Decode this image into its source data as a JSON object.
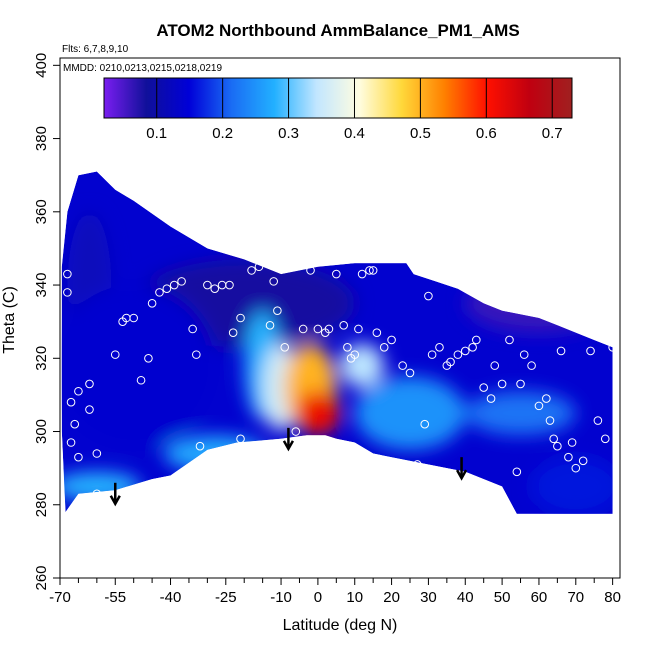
{
  "chart_data": {
    "type": "heatmap",
    "title": "ATOM2 Northbound AmmBalance_PM1_AMS",
    "annotations": [
      "Flts: 6,7,8,9,10",
      "MMDD: 0210,0213,0215,0218,0219"
    ],
    "xlabel": "Latitude (deg N)",
    "ylabel": "Theta (C)",
    "xlim": [
      -70,
      82
    ],
    "ylim": [
      260,
      402
    ],
    "x_ticks": [
      -70,
      -55,
      -40,
      -25,
      -10,
      0,
      10,
      20,
      30,
      40,
      50,
      60,
      70,
      80
    ],
    "x_tick_labels": [
      "-70",
      "-55",
      "-40",
      "-25",
      "-10",
      "0",
      "10",
      "20",
      "30",
      "40",
      "50",
      "60",
      "70",
      "80"
    ],
    "x_minor_ticks": [
      -65,
      -60,
      -50,
      -45,
      -35,
      -30,
      -20,
      -15,
      -5,
      5,
      15,
      25,
      35,
      45,
      55,
      65,
      75
    ],
    "y_ticks": [
      260,
      280,
      300,
      320,
      340,
      360,
      380,
      400
    ],
    "y_tick_labels": [
      "260",
      "280",
      "300",
      "320",
      "340",
      "360",
      "380",
      "400"
    ],
    "colorbar": {
      "range": [
        0.02,
        0.73
      ],
      "ticks": [
        0.1,
        0.2,
        0.3,
        0.4,
        0.5,
        0.6,
        0.7
      ],
      "tick_labels": [
        "0.1",
        "0.2",
        "0.3",
        "0.4",
        "0.5",
        "0.6",
        "0.7"
      ],
      "colors": [
        "#7a1ef0",
        "#10109a",
        "#0000d8",
        "#1a6cf4",
        "#22b0ff",
        "#c2e6ff",
        "#fffde0",
        "#ffd83a",
        "#ff8000",
        "#ff1000",
        "#c00010",
        "#a02020"
      ]
    },
    "field_outline": [
      [
        -68.5,
        278
      ],
      [
        -65,
        283
      ],
      [
        -55,
        284
      ],
      [
        -45,
        287
      ],
      [
        -40,
        288
      ],
      [
        -30,
        295
      ],
      [
        -22,
        297
      ],
      [
        -10,
        298
      ],
      [
        -3,
        299
      ],
      [
        2,
        299
      ],
      [
        5,
        298
      ],
      [
        10,
        297
      ],
      [
        15,
        294
      ],
      [
        20,
        293
      ],
      [
        30,
        291
      ],
      [
        40,
        289
      ],
      [
        45,
        287
      ],
      [
        50,
        285
      ],
      [
        54,
        277.5
      ],
      [
        80,
        277.5
      ],
      [
        80,
        323
      ],
      [
        75,
        325
      ],
      [
        70,
        327
      ],
      [
        65,
        329
      ],
      [
        60,
        331
      ],
      [
        50,
        333
      ],
      [
        45,
        335
      ],
      [
        38,
        339
      ],
      [
        32,
        341
      ],
      [
        26,
        343
      ],
      [
        24,
        346
      ],
      [
        10,
        346
      ],
      [
        0,
        345
      ],
      [
        -10,
        343
      ],
      [
        -20,
        347
      ],
      [
        -30,
        350
      ],
      [
        -40,
        356
      ],
      [
        -50,
        363
      ],
      [
        -55,
        366
      ],
      [
        -60,
        371
      ],
      [
        -65,
        370
      ],
      [
        -68,
        360
      ],
      [
        -69.5,
        345
      ],
      [
        -69.5,
        300
      ]
    ],
    "field_blobs": [
      {
        "center": [
          -62,
          340
        ],
        "value": 0.12,
        "extent": [
          6,
          20
        ]
      },
      {
        "center": [
          -20,
          335
        ],
        "value": 0.08,
        "extent": [
          30,
          12
        ]
      },
      {
        "center": [
          -50,
          318
        ],
        "value": 0.14,
        "extent": [
          22,
          22
        ]
      },
      {
        "center": [
          -60,
          285
        ],
        "value": 0.28,
        "extent": [
          12,
          4
        ]
      },
      {
        "center": [
          -28,
          294
        ],
        "value": 0.27,
        "extent": [
          14,
          5
        ]
      },
      {
        "center": [
          -15,
          318
        ],
        "value": 0.28,
        "extent": [
          5,
          15
        ]
      },
      {
        "center": [
          -10,
          312
        ],
        "value": 0.36,
        "extent": [
          5,
          12
        ]
      },
      {
        "center": [
          12,
          318
        ],
        "value": 0.34,
        "extent": [
          6,
          6
        ]
      },
      {
        "center": [
          -2,
          312
        ],
        "value": 0.5,
        "extent": [
          7,
          12
        ]
      },
      {
        "center": [
          0,
          305
        ],
        "value": 0.62,
        "extent": [
          6,
          6
        ]
      },
      {
        "center": [
          25,
          305
        ],
        "value": 0.25,
        "extent": [
          15,
          10
        ]
      },
      {
        "center": [
          55,
          305
        ],
        "value": 0.22,
        "extent": [
          15,
          6
        ]
      },
      {
        "center": [
          60,
          335
        ],
        "value": 0.06,
        "extent": [
          20,
          8
        ]
      },
      {
        "center": [
          70,
          285
        ],
        "value": 0.16,
        "extent": [
          12,
          8
        ]
      }
    ],
    "sample_points": [
      [
        -68,
        343
      ],
      [
        -68,
        338
      ],
      [
        -67,
        297
      ],
      [
        -67,
        308
      ],
      [
        -66,
        302
      ],
      [
        -65,
        311
      ],
      [
        -65,
        293
      ],
      [
        -62,
        306
      ],
      [
        -62,
        313
      ],
      [
        -60,
        294
      ],
      [
        -60,
        283
      ],
      [
        -55,
        321
      ],
      [
        -53,
        330
      ],
      [
        -52,
        331
      ],
      [
        -50,
        331
      ],
      [
        -48,
        314
      ],
      [
        -46,
        320
      ],
      [
        -45,
        335
      ],
      [
        -43,
        338
      ],
      [
        -41,
        339
      ],
      [
        -39,
        340
      ],
      [
        -37,
        341
      ],
      [
        -34,
        328
      ],
      [
        -33,
        321
      ],
      [
        -32,
        296
      ],
      [
        -30,
        340
      ],
      [
        -28,
        339
      ],
      [
        -26,
        340
      ],
      [
        -24,
        340
      ],
      [
        -23,
        327
      ],
      [
        -21,
        298
      ],
      [
        -21,
        331
      ],
      [
        -18,
        344
      ],
      [
        -16,
        345
      ],
      [
        -15,
        347
      ],
      [
        -13,
        329
      ],
      [
        -12,
        341
      ],
      [
        -11,
        333
      ],
      [
        -9,
        323
      ],
      [
        -6,
        300
      ],
      [
        -4,
        328
      ],
      [
        -2,
        344
      ],
      [
        0,
        328
      ],
      [
        2,
        327
      ],
      [
        3,
        328
      ],
      [
        5,
        343
      ],
      [
        7,
        329
      ],
      [
        8,
        323
      ],
      [
        9,
        320
      ],
      [
        10,
        321
      ],
      [
        11,
        328
      ],
      [
        12,
        343
      ],
      [
        14,
        344
      ],
      [
        15,
        344
      ],
      [
        16,
        327
      ],
      [
        18,
        323
      ],
      [
        20,
        325
      ],
      [
        23,
        318
      ],
      [
        25,
        316
      ],
      [
        27,
        291
      ],
      [
        29,
        302
      ],
      [
        30,
        337
      ],
      [
        31,
        321
      ],
      [
        33,
        323
      ],
      [
        35,
        318
      ],
      [
        36,
        319
      ],
      [
        38,
        321
      ],
      [
        40,
        322
      ],
      [
        42,
        323
      ],
      [
        43,
        325
      ],
      [
        45,
        312
      ],
      [
        47,
        309
      ],
      [
        48,
        318
      ],
      [
        50,
        313
      ],
      [
        52,
        325
      ],
      [
        54,
        289
      ],
      [
        55,
        313
      ],
      [
        56,
        321
      ],
      [
        58,
        318
      ],
      [
        60,
        307
      ],
      [
        62,
        309
      ],
      [
        63,
        303
      ],
      [
        64,
        298
      ],
      [
        65,
        296
      ],
      [
        66,
        322
      ],
      [
        68,
        293
      ],
      [
        69,
        297
      ],
      [
        70,
        290
      ],
      [
        72,
        292
      ],
      [
        74,
        322
      ],
      [
        76,
        303
      ],
      [
        78,
        298
      ],
      [
        80,
        323
      ]
    ],
    "arrows": [
      [
        -55,
        286
      ],
      [
        -8,
        301
      ],
      [
        39,
        293
      ]
    ]
  }
}
